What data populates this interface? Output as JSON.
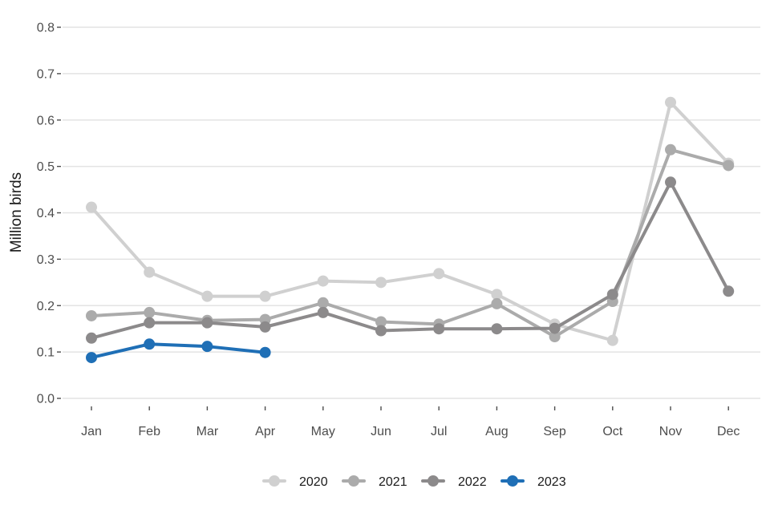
{
  "chart_data": {
    "type": "line",
    "title": "",
    "xlabel": "",
    "ylabel": "Million birds",
    "categories": [
      "Jan",
      "Feb",
      "Mar",
      "Apr",
      "May",
      "Jun",
      "Jul",
      "Aug",
      "Sep",
      "Oct",
      "Nov",
      "Dec"
    ],
    "ylim": [
      0,
      0.8
    ],
    "yticks": [
      0.0,
      0.1,
      0.2,
      0.3,
      0.4,
      0.5,
      0.6,
      0.7,
      0.8
    ],
    "ytick_labels": [
      "0.0",
      "0.1",
      "0.2",
      "0.3",
      "0.4",
      "0.5",
      "0.6",
      "0.7",
      "0.8"
    ],
    "grid": "horizontal",
    "legend_position": "bottom",
    "series": [
      {
        "name": "2020",
        "color": "#d0d0d0",
        "values": [
          0.412,
          0.272,
          0.22,
          0.22,
          0.253,
          0.25,
          0.269,
          0.224,
          0.16,
          0.125,
          0.638,
          0.507
        ]
      },
      {
        "name": "2021",
        "color": "#ababab",
        "values": [
          0.178,
          0.185,
          0.168,
          0.17,
          0.206,
          0.165,
          0.16,
          0.204,
          0.133,
          0.209,
          0.536,
          0.502
        ]
      },
      {
        "name": "2022",
        "color": "#8c8a8b",
        "values": [
          0.13,
          0.163,
          0.163,
          0.154,
          0.185,
          0.146,
          0.15,
          0.15,
          0.151,
          0.224,
          0.466,
          0.231
        ]
      },
      {
        "name": "2023",
        "color": "#1f6fb6",
        "values": [
          0.088,
          0.117,
          0.112,
          0.099,
          null,
          null,
          null,
          null,
          null,
          null,
          null,
          null
        ]
      }
    ]
  }
}
